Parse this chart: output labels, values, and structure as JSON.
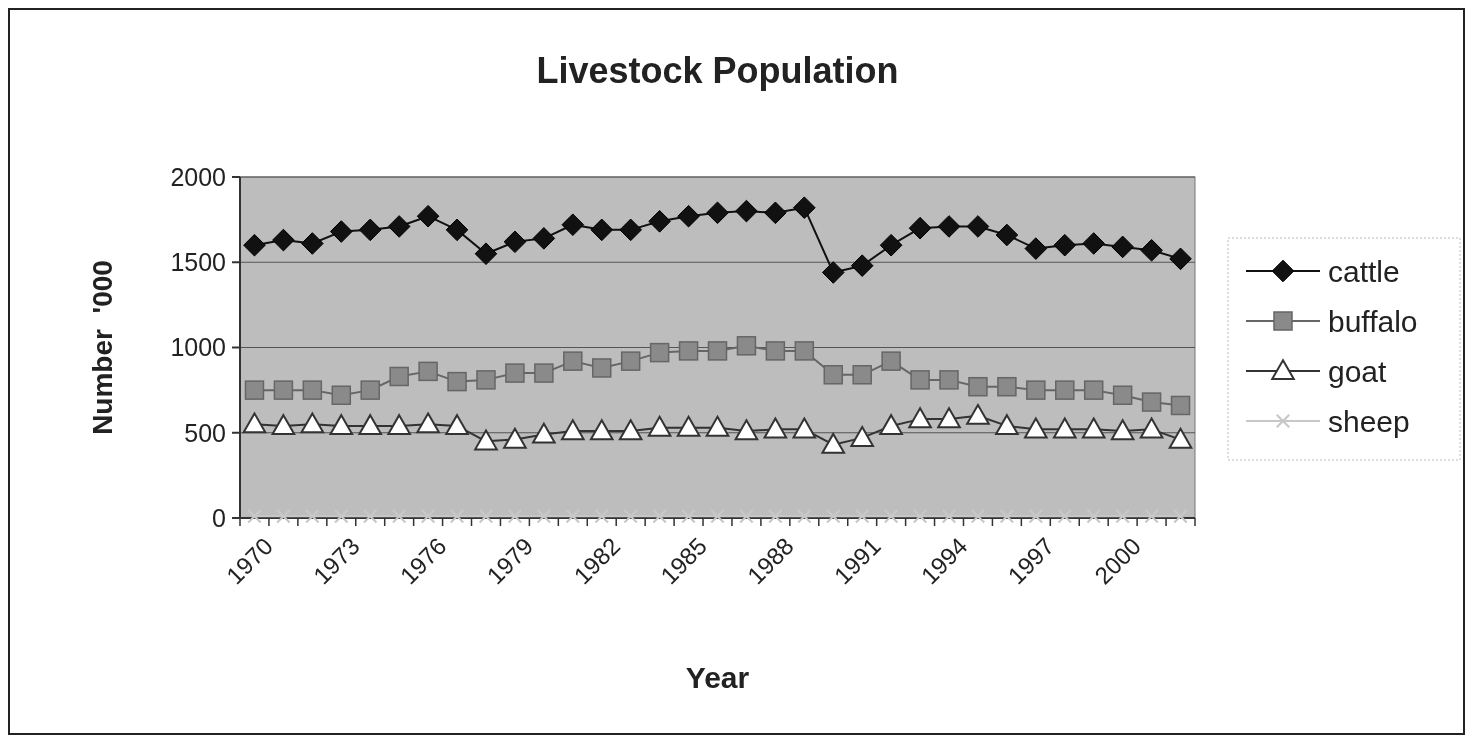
{
  "chart_data": {
    "type": "line",
    "title": "Livestock Population",
    "xlabel": "Year",
    "ylabel": "Number  '000",
    "categories": [
      "1970",
      null,
      null,
      "1973",
      null,
      null,
      "1976",
      null,
      null,
      "1979",
      null,
      null,
      "1982",
      null,
      null,
      "1985",
      null,
      null,
      "1988",
      null,
      null,
      "1991",
      null,
      null,
      "1994",
      null,
      null,
      "1997",
      null,
      null,
      "2000",
      null,
      null
    ],
    "series": [
      {
        "name": "cattle",
        "color": "#111111",
        "marker": "diamond",
        "values": [
          1600,
          1630,
          1610,
          1680,
          1690,
          1710,
          1770,
          1690,
          1550,
          1620,
          1640,
          1720,
          1690,
          1690,
          1740,
          1770,
          1790,
          1800,
          1790,
          1820,
          1440,
          1480,
          1600,
          1700,
          1710,
          1710,
          1660,
          1580,
          1600,
          1610,
          1590,
          1570,
          1520
        ]
      },
      {
        "name": "buffalo",
        "color": "#666666",
        "marker": "square",
        "values": [
          750,
          750,
          750,
          720,
          750,
          830,
          860,
          800,
          810,
          850,
          850,
          920,
          880,
          920,
          970,
          980,
          980,
          1010,
          980,
          980,
          840,
          840,
          920,
          810,
          810,
          770,
          770,
          750,
          750,
          750,
          720,
          680,
          660
        ]
      },
      {
        "name": "goat",
        "color": "#333333",
        "marker": "triangle",
        "values": [
          550,
          540,
          550,
          540,
          540,
          540,
          550,
          540,
          450,
          460,
          490,
          510,
          510,
          510,
          530,
          530,
          530,
          510,
          520,
          520,
          430,
          470,
          540,
          580,
          580,
          600,
          540,
          520,
          520,
          520,
          510,
          520,
          460
        ]
      },
      {
        "name": "sheep",
        "color": "#c8c8c8",
        "marker": "cross",
        "values": [
          10,
          10,
          10,
          10,
          10,
          10,
          10,
          10,
          10,
          10,
          10,
          10,
          10,
          10,
          10,
          10,
          10,
          10,
          10,
          10,
          10,
          10,
          10,
          10,
          10,
          10,
          10,
          10,
          10,
          10,
          10,
          10,
          10
        ]
      }
    ],
    "ylim": [
      0,
      2000
    ],
    "yticks": [
      0,
      500,
      1000,
      1500,
      2000
    ],
    "grid": "y",
    "legend": "right"
  }
}
